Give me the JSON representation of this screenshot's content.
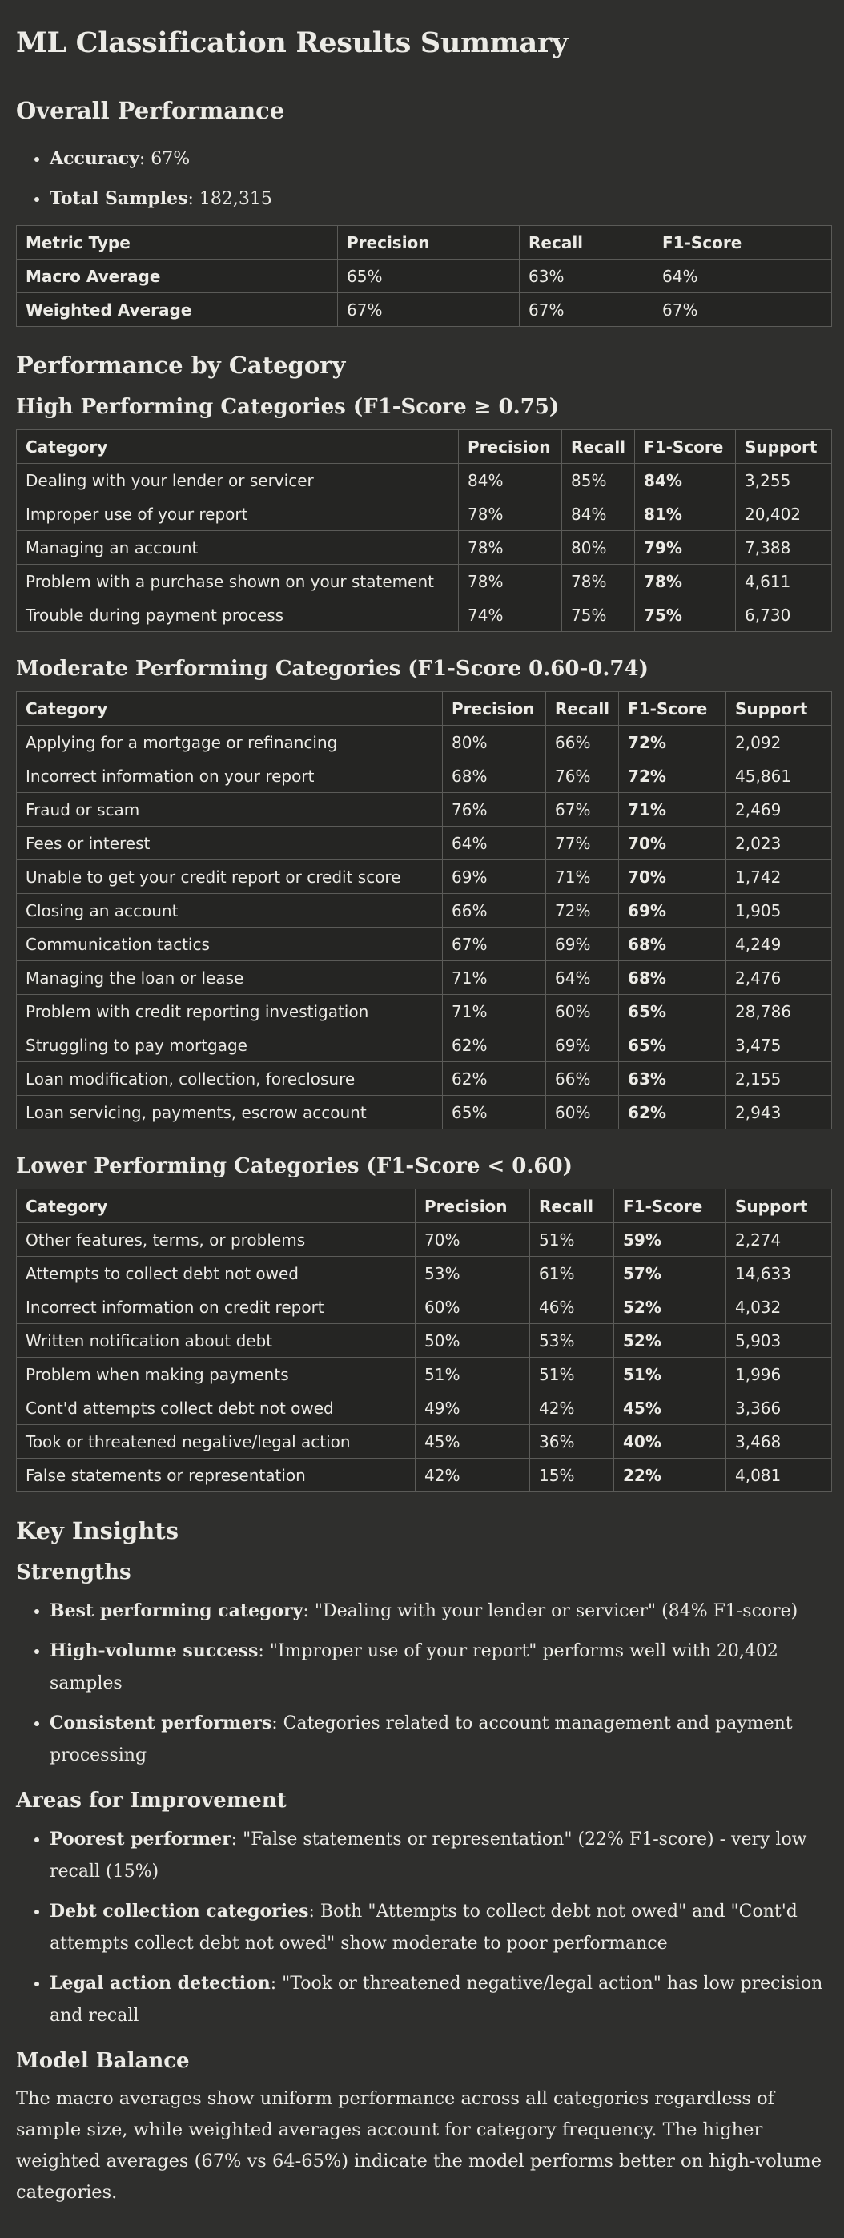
{
  "title": "ML Classification Results Summary",
  "overall": {
    "heading": "Overall Performance",
    "accuracy_label": "Accuracy",
    "accuracy_value": ": 67%",
    "samples_label": "Total Samples",
    "samples_value": ": 182,315",
    "table": {
      "headers": [
        "Metric Type",
        "Precision",
        "Recall",
        "F1-Score"
      ],
      "rows": [
        [
          "Macro Average",
          "65%",
          "63%",
          "64%"
        ],
        [
          "Weighted Average",
          "67%",
          "67%",
          "67%"
        ]
      ]
    }
  },
  "by_category": {
    "heading": "Performance by Category",
    "high": {
      "heading": "High Performing Categories (F1-Score ≥ 0.75)",
      "headers": [
        "Category",
        "Precision",
        "Recall",
        "F1-Score",
        "Support"
      ],
      "rows": [
        [
          "Dealing with your lender or servicer",
          "84%",
          "85%",
          "84%",
          "3,255"
        ],
        [
          "Improper use of your report",
          "78%",
          "84%",
          "81%",
          "20,402"
        ],
        [
          "Managing an account",
          "78%",
          "80%",
          "79%",
          "7,388"
        ],
        [
          "Problem with a purchase shown on your statement",
          "78%",
          "78%",
          "78%",
          "4,611"
        ],
        [
          "Trouble during payment process",
          "74%",
          "75%",
          "75%",
          "6,730"
        ]
      ]
    },
    "moderate": {
      "heading": "Moderate Performing Categories (F1-Score 0.60-0.74)",
      "headers": [
        "Category",
        "Precision",
        "Recall",
        "F1-Score",
        "Support"
      ],
      "rows": [
        [
          "Applying for a mortgage or refinancing",
          "80%",
          "66%",
          "72%",
          "2,092"
        ],
        [
          "Incorrect information on your report",
          "68%",
          "76%",
          "72%",
          "45,861"
        ],
        [
          "Fraud or scam",
          "76%",
          "67%",
          "71%",
          "2,469"
        ],
        [
          "Fees or interest",
          "64%",
          "77%",
          "70%",
          "2,023"
        ],
        [
          "Unable to get your credit report or credit score",
          "69%",
          "71%",
          "70%",
          "1,742"
        ],
        [
          "Closing an account",
          "66%",
          "72%",
          "69%",
          "1,905"
        ],
        [
          "Communication tactics",
          "67%",
          "69%",
          "68%",
          "4,249"
        ],
        [
          "Managing the loan or lease",
          "71%",
          "64%",
          "68%",
          "2,476"
        ],
        [
          "Problem with credit reporting investigation",
          "71%",
          "60%",
          "65%",
          "28,786"
        ],
        [
          "Struggling to pay mortgage",
          "62%",
          "69%",
          "65%",
          "3,475"
        ],
        [
          "Loan modification, collection, foreclosure",
          "62%",
          "66%",
          "63%",
          "2,155"
        ],
        [
          "Loan servicing, payments, escrow account",
          "65%",
          "60%",
          "62%",
          "2,943"
        ]
      ]
    },
    "lower": {
      "heading": "Lower Performing Categories (F1-Score < 0.60)",
      "headers": [
        "Category",
        "Precision",
        "Recall",
        "F1-Score",
        "Support"
      ],
      "rows": [
        [
          "Other features, terms, or problems",
          "70%",
          "51%",
          "59%",
          "2,274"
        ],
        [
          "Attempts to collect debt not owed",
          "53%",
          "61%",
          "57%",
          "14,633"
        ],
        [
          "Incorrect information on credit report",
          "60%",
          "46%",
          "52%",
          "4,032"
        ],
        [
          "Written notification about debt",
          "50%",
          "53%",
          "52%",
          "5,903"
        ],
        [
          "Problem when making payments",
          "51%",
          "51%",
          "51%",
          "1,996"
        ],
        [
          "Cont'd attempts collect debt not owed",
          "49%",
          "42%",
          "45%",
          "3,366"
        ],
        [
          "Took or threatened negative/legal action",
          "45%",
          "36%",
          "40%",
          "3,468"
        ],
        [
          "False statements or representation",
          "42%",
          "15%",
          "22%",
          "4,081"
        ]
      ]
    }
  },
  "insights": {
    "heading": "Key Insights",
    "strengths": {
      "heading": "Strengths",
      "items": [
        {
          "label": "Best performing category",
          "text": ": \"Dealing with your lender or servicer\" (84% F1-score)"
        },
        {
          "label": "High-volume success",
          "text": ": \"Improper use of your report\" performs well with 20,402 samples"
        },
        {
          "label": "Consistent performers",
          "text": ": Categories related to account management and payment processing"
        }
      ]
    },
    "improvement": {
      "heading": "Areas for Improvement",
      "items": [
        {
          "label": "Poorest performer",
          "text": ": \"False statements or representation\" (22% F1-score) - very low recall (15%)"
        },
        {
          "label": "Debt collection categories",
          "text": ": Both \"Attempts to collect debt not owed\" and \"Cont'd attempts collect debt not owed\" show moderate to poor performance"
        },
        {
          "label": "Legal action detection",
          "text": ": \"Took or threatened negative/legal action\" has low precision and recall"
        }
      ]
    },
    "balance": {
      "heading": "Model Balance",
      "text": "The macro averages show uniform performance across all categories regardless of sample size, while weighted averages account for category frequency. The higher weighted averages (67% vs 64-65%) indicate the model performs better on high-volume categories."
    }
  }
}
